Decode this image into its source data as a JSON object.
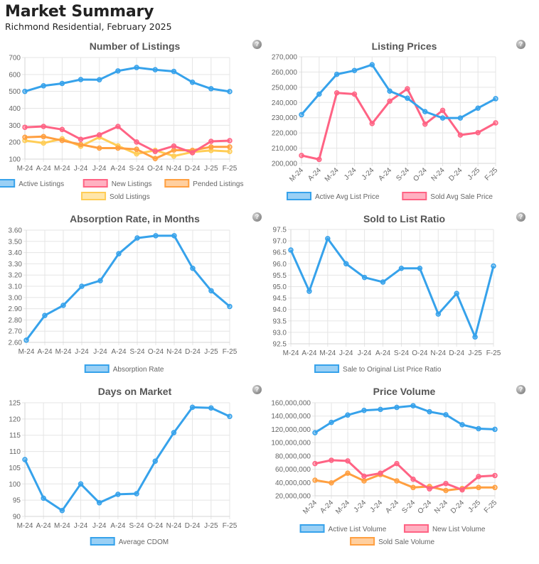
{
  "header": {
    "title": "Market Summary",
    "subtitle": "Richmond Residential, February 2025"
  },
  "help_icon": "question-mark-icon",
  "colors": {
    "blue": "#36a2eb",
    "red": "#ff6384",
    "orange": "#ff9f40",
    "yellow": "#ffcd56",
    "grid": "#e5e5e5",
    "axis_text": "#666666"
  },
  "chart_data": [
    {
      "id": "listings",
      "type": "line",
      "title": "Number of Listings",
      "categories": [
        "M-24",
        "A-24",
        "M-24",
        "J-24",
        "J-24",
        "A-24",
        "S-24",
        "O-24",
        "N-24",
        "D-24",
        "J-25",
        "F-25"
      ],
      "ylim": [
        100,
        700
      ],
      "yticks": [
        100,
        200,
        300,
        400,
        500,
        600,
        700
      ],
      "ytick_labels": [
        "100",
        "200",
        "300",
        "400",
        "500",
        "600",
        "700"
      ],
      "grid": true,
      "x_label_rotation": "none",
      "legend_position": "bottom",
      "series": [
        {
          "name": "Active Listings",
          "color": "blue",
          "values": [
            500,
            533,
            547,
            570,
            569,
            621,
            641,
            628,
            618,
            554,
            516,
            499
          ]
        },
        {
          "name": "New Listings",
          "color": "red",
          "values": [
            288,
            293,
            275,
            217,
            243,
            293,
            201,
            145,
            177,
            138,
            205,
            209
          ]
        },
        {
          "name": "Pended Listings",
          "color": "orange",
          "values": [
            229,
            233,
            210,
            186,
            165,
            165,
            158,
            103,
            153,
            152,
            172,
            172
          ]
        },
        {
          "name": "Sold Listings",
          "color": "yellow",
          "values": [
            210,
            195,
            220,
            176,
            230,
            178,
            131,
            152,
            118,
            142,
            151,
            145
          ]
        }
      ]
    },
    {
      "id": "prices",
      "type": "line",
      "title": "Listing Prices",
      "categories": [
        "M-24",
        "A-24",
        "M-24",
        "J-24",
        "J-24",
        "A-24",
        "S-24",
        "O-24",
        "N-24",
        "D-24",
        "J-25",
        "F-25"
      ],
      "ylim": [
        200000,
        270000
      ],
      "yticks": [
        200000,
        210000,
        220000,
        230000,
        240000,
        250000,
        260000,
        270000
      ],
      "ytick_labels": [
        "200,000",
        "210,000",
        "220,000",
        "230,000",
        "240,000",
        "250,000",
        "260,000",
        "270,000"
      ],
      "grid": true,
      "x_label_rotation": "diagonal",
      "legend_position": "bottom",
      "series": [
        {
          "name": "Active Avg List Price",
          "color": "blue",
          "values": [
            232000,
            245500,
            258500,
            261000,
            264800,
            247500,
            242800,
            234000,
            229800,
            229800,
            236300,
            242500
          ]
        },
        {
          "name": "Sold Avg Sale Price",
          "color": "red",
          "values": [
            205200,
            202600,
            246300,
            245500,
            226200,
            240900,
            249000,
            225800,
            234800,
            218600,
            220200,
            226600
          ]
        }
      ]
    },
    {
      "id": "absorption",
      "type": "line",
      "title": "Absorption Rate, in Months",
      "categories": [
        "M-24",
        "A-24",
        "M-24",
        "J-24",
        "J-24",
        "A-24",
        "S-24",
        "O-24",
        "N-24",
        "D-24",
        "J-25",
        "F-25"
      ],
      "ylim": [
        2.6,
        3.6
      ],
      "yticks": [
        2.6,
        2.7,
        2.8,
        2.9,
        3.0,
        3.1,
        3.2,
        3.3,
        3.4,
        3.5,
        3.6
      ],
      "ytick_labels": [
        "2.60",
        "2.70",
        "2.80",
        "2.90",
        "3.00",
        "3.10",
        "3.20",
        "3.30",
        "3.40",
        "3.50",
        "3.60"
      ],
      "grid": true,
      "x_label_rotation": "none",
      "legend_position": "bottom",
      "series": [
        {
          "name": "Absorption Rate",
          "color": "blue",
          "values": [
            2.62,
            2.84,
            2.93,
            3.1,
            3.15,
            3.39,
            3.53,
            3.55,
            3.55,
            3.26,
            3.06,
            2.92
          ]
        }
      ]
    },
    {
      "id": "ratio",
      "type": "line",
      "title": "Sold to List Ratio",
      "categories": [
        "M-24",
        "A-24",
        "M-24",
        "J-24",
        "J-24",
        "A-24",
        "S-24",
        "O-24",
        "N-24",
        "D-24",
        "J-25",
        "F-25"
      ],
      "ylim": [
        92.5,
        97.5
      ],
      "yticks": [
        92.5,
        93.0,
        93.5,
        94.0,
        94.5,
        95.0,
        95.5,
        96.0,
        96.5,
        97.0,
        97.5
      ],
      "ytick_labels": [
        "92.5",
        "93.0",
        "93.5",
        "94.0",
        "94.5",
        "95.0",
        "95.5",
        "96.0",
        "96.5",
        "97.0",
        "97.5"
      ],
      "grid": true,
      "x_label_rotation": "none",
      "legend_position": "bottom",
      "series": [
        {
          "name": "Sale to Original List Price Ratio",
          "color": "blue",
          "values": [
            96.6,
            94.8,
            97.1,
            96.0,
            95.4,
            95.2,
            95.8,
            95.8,
            93.8,
            94.7,
            92.8,
            95.9
          ]
        }
      ]
    },
    {
      "id": "dom",
      "type": "line",
      "title": "Days on Market",
      "categories": [
        "M-24",
        "A-24",
        "M-24",
        "J-24",
        "J-24",
        "A-24",
        "S-24",
        "O-24",
        "N-24",
        "D-24",
        "J-25",
        "F-25"
      ],
      "ylim": [
        90,
        125
      ],
      "yticks": [
        90,
        95,
        100,
        105,
        110,
        115,
        120,
        125
      ],
      "ytick_labels": [
        "90",
        "95",
        "100",
        "105",
        "110",
        "115",
        "120",
        "125"
      ],
      "grid": true,
      "x_label_rotation": "none",
      "legend_position": "bottom",
      "series": [
        {
          "name": "Average CDOM",
          "color": "blue",
          "values": [
            107.5,
            95.6,
            91.8,
            100.0,
            94.2,
            96.8,
            97.0,
            107.0,
            115.8,
            123.6,
            123.4,
            120.8
          ]
        }
      ]
    },
    {
      "id": "volume",
      "type": "line",
      "title": "Price Volume",
      "categories": [
        "M-24",
        "A-24",
        "M-24",
        "J-24",
        "J-24",
        "A-24",
        "S-24",
        "O-24",
        "N-24",
        "D-24",
        "J-25",
        "F-25"
      ],
      "ylim": [
        20000000,
        160000000
      ],
      "yticks": [
        20000000,
        40000000,
        60000000,
        80000000,
        100000000,
        120000000,
        140000000,
        160000000
      ],
      "ytick_labels": [
        "20,000,000",
        "40,000,000",
        "60,000,000",
        "80,000,000",
        "100,000,000",
        "120,000,000",
        "140,000,000",
        "160,000,000"
      ],
      "grid": true,
      "x_label_rotation": "diagonal",
      "legend_position": "bottom",
      "series": [
        {
          "name": "Active List Volume",
          "color": "blue",
          "values": [
            115000000,
            130500000,
            141500000,
            148500000,
            150000000,
            153000000,
            155500000,
            146500000,
            142000000,
            127000000,
            121000000,
            120000000
          ]
        },
        {
          "name": "New List Volume",
          "color": "red",
          "values": [
            68500000,
            73500000,
            72500000,
            49500000,
            54000000,
            68500000,
            45000000,
            30500000,
            38500000,
            29000000,
            49000000,
            50500000
          ]
        },
        {
          "name": "Sold Sale Volume",
          "color": "orange",
          "values": [
            43500000,
            39500000,
            54000000,
            42500000,
            52000000,
            42500000,
            32500000,
            34000000,
            28000000,
            31000000,
            32500000,
            32500000
          ]
        }
      ]
    }
  ]
}
